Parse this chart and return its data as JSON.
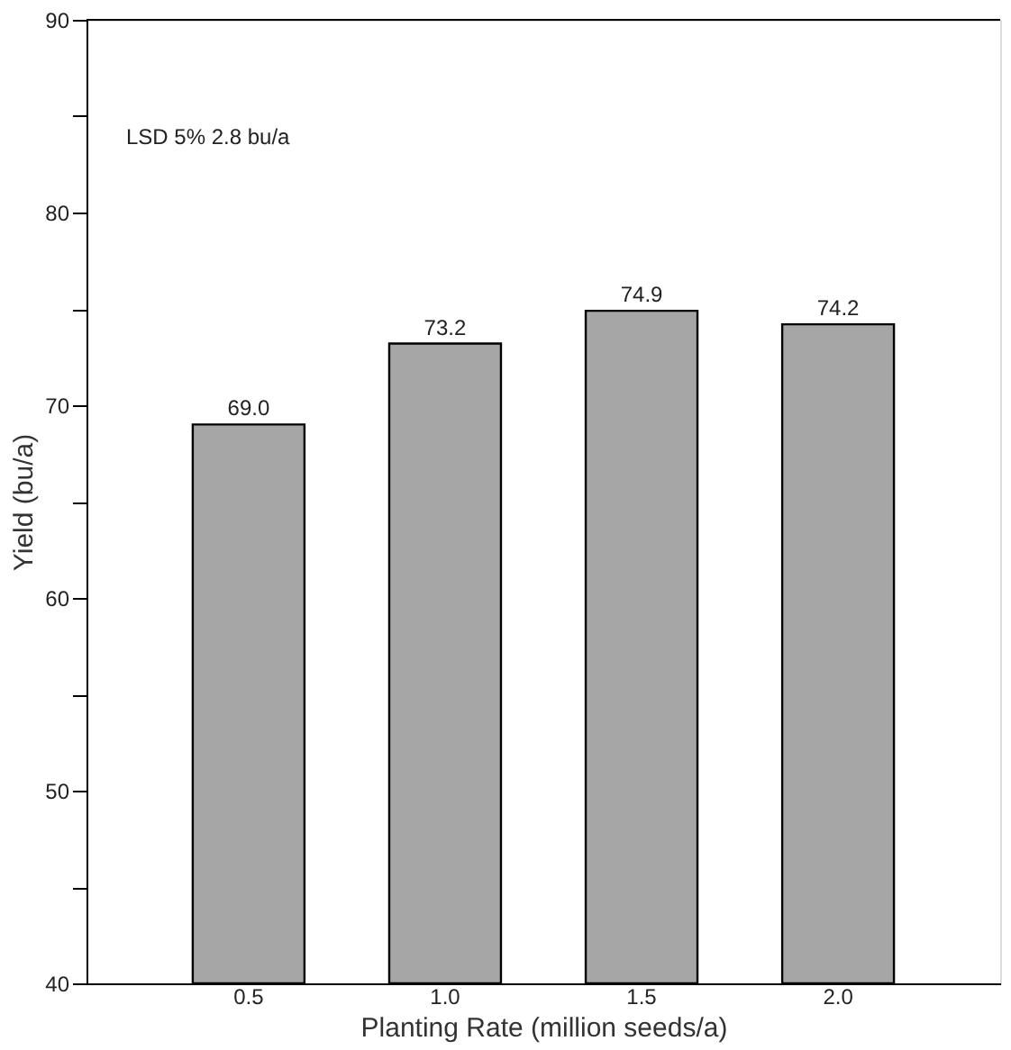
{
  "chart_data": {
    "type": "bar",
    "categories": [
      "0.5",
      "1.0",
      "1.5",
      "2.0"
    ],
    "values": [
      69.0,
      73.2,
      74.9,
      74.2
    ],
    "value_labels": [
      "69.0",
      "73.2",
      "74.9",
      "74.2"
    ],
    "color": "#a6a6a6",
    "xlabel": "Planting Rate (million seeds/a)",
    "ylabel": "Yield (bu/a)",
    "ylim": [
      40,
      90
    ],
    "yticks": [
      40,
      {
        "value": 45,
        "label": null
      },
      50,
      {
        "value": 55,
        "label": null
      },
      60,
      {
        "value": 65,
        "label": null
      },
      70,
      {
        "value": 75,
        "label": null
      },
      80,
      {
        "value": 85,
        "label": null
      },
      90
    ],
    "annotations": [
      "LSD 5%  2.8 bu/a"
    ],
    "grid": false
  }
}
